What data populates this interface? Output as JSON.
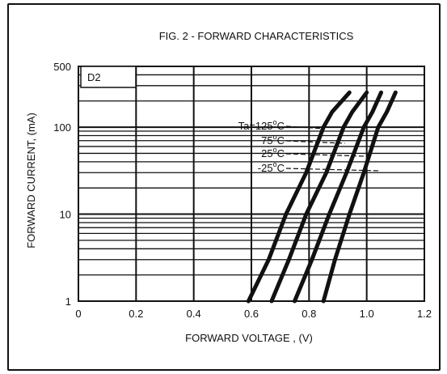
{
  "chart_data": {
    "type": "line",
    "title": "FIG. 2 - FORWARD CHARACTERISTICS",
    "panel_label": "D2",
    "xlabel": "FORWARD  VOLTAGE , (V)",
    "ylabel": "FORWARD  CURRENT, (mA)",
    "xlim": [
      0,
      1.2
    ],
    "ylim": [
      1,
      500
    ],
    "x_scale": "linear",
    "y_scale": "log",
    "x_ticks": [
      0,
      0.2,
      0.4,
      0.6,
      0.8,
      1.0,
      1.2
    ],
    "x_tick_labels": [
      "0",
      "0.2",
      "0.4",
      "0.6",
      "0.8",
      "1.0",
      "1.2"
    ],
    "y_ticks": [
      1,
      10,
      100,
      500
    ],
    "y_tick_labels": [
      "1",
      "10",
      "100",
      "500"
    ],
    "grid": true,
    "series": [
      {
        "name": "Ta=125°C",
        "label_main": "Ta=125",
        "label_sup": "o",
        "label_unit": "C",
        "x": [
          0.59,
          0.66,
          0.72,
          0.79,
          0.85,
          0.88,
          0.94
        ],
        "y": [
          1,
          3,
          10,
          30,
          100,
          150,
          250
        ]
      },
      {
        "name": "75°C",
        "label_main": "75",
        "label_sup": "o",
        "label_unit": "C",
        "x": [
          0.67,
          0.73,
          0.79,
          0.86,
          0.92,
          0.95,
          1.0
        ],
        "y": [
          1,
          3,
          10,
          30,
          100,
          150,
          250
        ]
      },
      {
        "name": "25°C",
        "label_main": "25",
        "label_sup": "o",
        "label_unit": "C",
        "x": [
          0.75,
          0.81,
          0.87,
          0.93,
          0.99,
          1.02,
          1.05
        ],
        "y": [
          1,
          3,
          10,
          30,
          100,
          150,
          250
        ]
      },
      {
        "name": "-25°C",
        "label_main": "-25",
        "label_sup": "o",
        "label_unit": "C",
        "x": [
          0.85,
          0.89,
          0.94,
          0.99,
          1.04,
          1.07,
          1.1
        ],
        "y": [
          1,
          3,
          10,
          30,
          100,
          150,
          250
        ]
      }
    ]
  }
}
